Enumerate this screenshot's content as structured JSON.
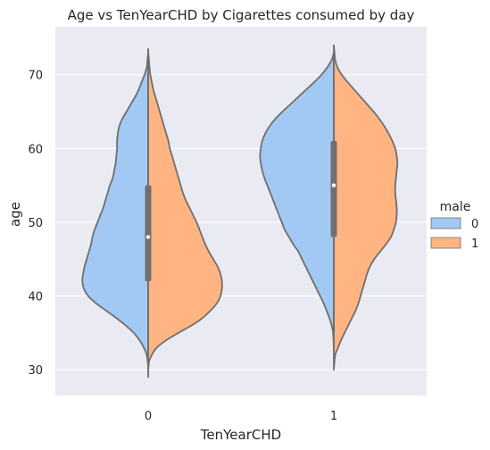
{
  "chart_data": {
    "type": "violin",
    "title": "Age vs TenYearCHD by Cigarettes consumed by day",
    "xlabel": "TenYearCHD",
    "ylabel": "age",
    "categories": [
      "0",
      "1"
    ],
    "ylim": [
      26.5,
      76.5
    ],
    "yticks": [
      30,
      40,
      50,
      60,
      70
    ],
    "grid": true,
    "split": true,
    "legend": {
      "title": "male",
      "placement": "right",
      "entries": [
        {
          "label": "0",
          "color": "#a1c9f4"
        },
        {
          "label": "1",
          "color": "#ffb482"
        }
      ]
    },
    "colors": {
      "background": "#eaeaf2",
      "grid": "#ffffff",
      "outline": "#6f6f6f",
      "box": "#6f6f6f",
      "median": "#ffffff"
    },
    "violins": [
      {
        "category": "0",
        "inner_box": {
          "q1": 42,
          "median": 48,
          "q3": 55,
          "whisker_low": 32,
          "whisker_high": 70
        },
        "halves": [
          {
            "hue": "0",
            "side": "left",
            "color": "#a1c9f4",
            "profile": [
              [
                30.5,
                0.0
              ],
              [
                32,
                0.02
              ],
              [
                33,
                0.06
              ],
              [
                34,
                0.12
              ],
              [
                35,
                0.2
              ],
              [
                36,
                0.31
              ],
              [
                37,
                0.44
              ],
              [
                38,
                0.58
              ],
              [
                39,
                0.72
              ],
              [
                40,
                0.83
              ],
              [
                41,
                0.89
              ],
              [
                42,
                0.91
              ],
              [
                43,
                0.9
              ],
              [
                44,
                0.88
              ],
              [
                45,
                0.85
              ],
              [
                46,
                0.82
              ],
              [
                47,
                0.79
              ],
              [
                48,
                0.77
              ],
              [
                49,
                0.74
              ],
              [
                50,
                0.7
              ],
              [
                51,
                0.66
              ],
              [
                52,
                0.62
              ],
              [
                53,
                0.59
              ],
              [
                54,
                0.56
              ],
              [
                55,
                0.53
              ],
              [
                56,
                0.49
              ],
              [
                57,
                0.47
              ],
              [
                58,
                0.45
              ],
              [
                59,
                0.44
              ],
              [
                60,
                0.43
              ],
              [
                61,
                0.43
              ],
              [
                62,
                0.42
              ],
              [
                63,
                0.4
              ],
              [
                64,
                0.36
              ],
              [
                65,
                0.3
              ],
              [
                66,
                0.24
              ],
              [
                67,
                0.18
              ],
              [
                68,
                0.13
              ],
              [
                69,
                0.09
              ],
              [
                70,
                0.05
              ],
              [
                71,
                0.02
              ],
              [
                72,
                0.01
              ],
              [
                73,
                0.0
              ]
            ]
          },
          {
            "hue": "1",
            "side": "right",
            "color": "#ffb482",
            "profile": [
              [
                29,
                0.0
              ],
              [
                31,
                0.01
              ],
              [
                32,
                0.05
              ],
              [
                33,
                0.12
              ],
              [
                34,
                0.25
              ],
              [
                35,
                0.42
              ],
              [
                36,
                0.6
              ],
              [
                37,
                0.75
              ],
              [
                38,
                0.86
              ],
              [
                39,
                0.95
              ],
              [
                40,
                1.0
              ],
              [
                41,
                1.02
              ],
              [
                42,
                1.02
              ],
              [
                43,
                1.0
              ],
              [
                44,
                0.96
              ],
              [
                45,
                0.9
              ],
              [
                46,
                0.84
              ],
              [
                47,
                0.79
              ],
              [
                48,
                0.75
              ],
              [
                49,
                0.71
              ],
              [
                50,
                0.67
              ],
              [
                51,
                0.62
              ],
              [
                52,
                0.57
              ],
              [
                53,
                0.52
              ],
              [
                54,
                0.48
              ],
              [
                55,
                0.45
              ],
              [
                56,
                0.42
              ],
              [
                57,
                0.39
              ],
              [
                58,
                0.36
              ],
              [
                59,
                0.33
              ],
              [
                60,
                0.3
              ],
              [
                61,
                0.28
              ],
              [
                62,
                0.25
              ],
              [
                63,
                0.22
              ],
              [
                64,
                0.19
              ],
              [
                65,
                0.16
              ],
              [
                66,
                0.13
              ],
              [
                67,
                0.1
              ],
              [
                68,
                0.07
              ],
              [
                69,
                0.05
              ],
              [
                70,
                0.03
              ],
              [
                71,
                0.02
              ],
              [
                72,
                0.01
              ],
              [
                73.5,
                0.0
              ]
            ]
          }
        ]
      },
      {
        "category": "1",
        "inner_box": {
          "q1": 48,
          "median": 55,
          "q3": 61,
          "whisker_low": 35,
          "whisker_high": 69
        },
        "halves": [
          {
            "hue": "0",
            "side": "left",
            "color": "#a1c9f4",
            "profile": [
              [
                33,
                0.0
              ],
              [
                35,
                0.01
              ],
              [
                36,
                0.03
              ],
              [
                37,
                0.06
              ],
              [
                38,
                0.1
              ],
              [
                39,
                0.14
              ],
              [
                40,
                0.19
              ],
              [
                41,
                0.24
              ],
              [
                42,
                0.29
              ],
              [
                43,
                0.34
              ],
              [
                44,
                0.39
              ],
              [
                45,
                0.44
              ],
              [
                46,
                0.49
              ],
              [
                47,
                0.56
              ],
              [
                48,
                0.62
              ],
              [
                49,
                0.68
              ],
              [
                50,
                0.72
              ],
              [
                51,
                0.76
              ],
              [
                52,
                0.8
              ],
              [
                53,
                0.84
              ],
              [
                54,
                0.88
              ],
              [
                55,
                0.92
              ],
              [
                56,
                0.96
              ],
              [
                57,
                0.99
              ],
              [
                58,
                1.01
              ],
              [
                59,
                1.02
              ],
              [
                60,
                1.01
              ],
              [
                61,
                0.99
              ],
              [
                62,
                0.95
              ],
              [
                63,
                0.89
              ],
              [
                64,
                0.81
              ],
              [
                65,
                0.71
              ],
              [
                66,
                0.6
              ],
              [
                67,
                0.49
              ],
              [
                68,
                0.38
              ],
              [
                69,
                0.27
              ],
              [
                70,
                0.17
              ],
              [
                71,
                0.09
              ],
              [
                72,
                0.03
              ],
              [
                73,
                0.0
              ]
            ]
          },
          {
            "hue": "1",
            "side": "right",
            "color": "#ffb482",
            "profile": [
              [
                30,
                0.0
              ],
              [
                32,
                0.02
              ],
              [
                33,
                0.06
              ],
              [
                34,
                0.1
              ],
              [
                35,
                0.15
              ],
              [
                36,
                0.2
              ],
              [
                37,
                0.25
              ],
              [
                38,
                0.3
              ],
              [
                39,
                0.34
              ],
              [
                40,
                0.37
              ],
              [
                41,
                0.4
              ],
              [
                42,
                0.43
              ],
              [
                43,
                0.46
              ],
              [
                44,
                0.5
              ],
              [
                45,
                0.56
              ],
              [
                46,
                0.64
              ],
              [
                47,
                0.72
              ],
              [
                48,
                0.79
              ],
              [
                49,
                0.83
              ],
              [
                50,
                0.86
              ],
              [
                51,
                0.87
              ],
              [
                52,
                0.87
              ],
              [
                53,
                0.86
              ],
              [
                54,
                0.85
              ],
              [
                55,
                0.85
              ],
              [
                56,
                0.86
              ],
              [
                57,
                0.87
              ],
              [
                58,
                0.88
              ],
              [
                59,
                0.87
              ],
              [
                60,
                0.85
              ],
              [
                61,
                0.81
              ],
              [
                62,
                0.76
              ],
              [
                63,
                0.7
              ],
              [
                64,
                0.63
              ],
              [
                65,
                0.55
              ],
              [
                66,
                0.46
              ],
              [
                67,
                0.37
              ],
              [
                68,
                0.28
              ],
              [
                69,
                0.19
              ],
              [
                70,
                0.11
              ],
              [
                71,
                0.05
              ],
              [
                72,
                0.02
              ],
              [
                74,
                0.0
              ]
            ]
          }
        ]
      }
    ]
  }
}
